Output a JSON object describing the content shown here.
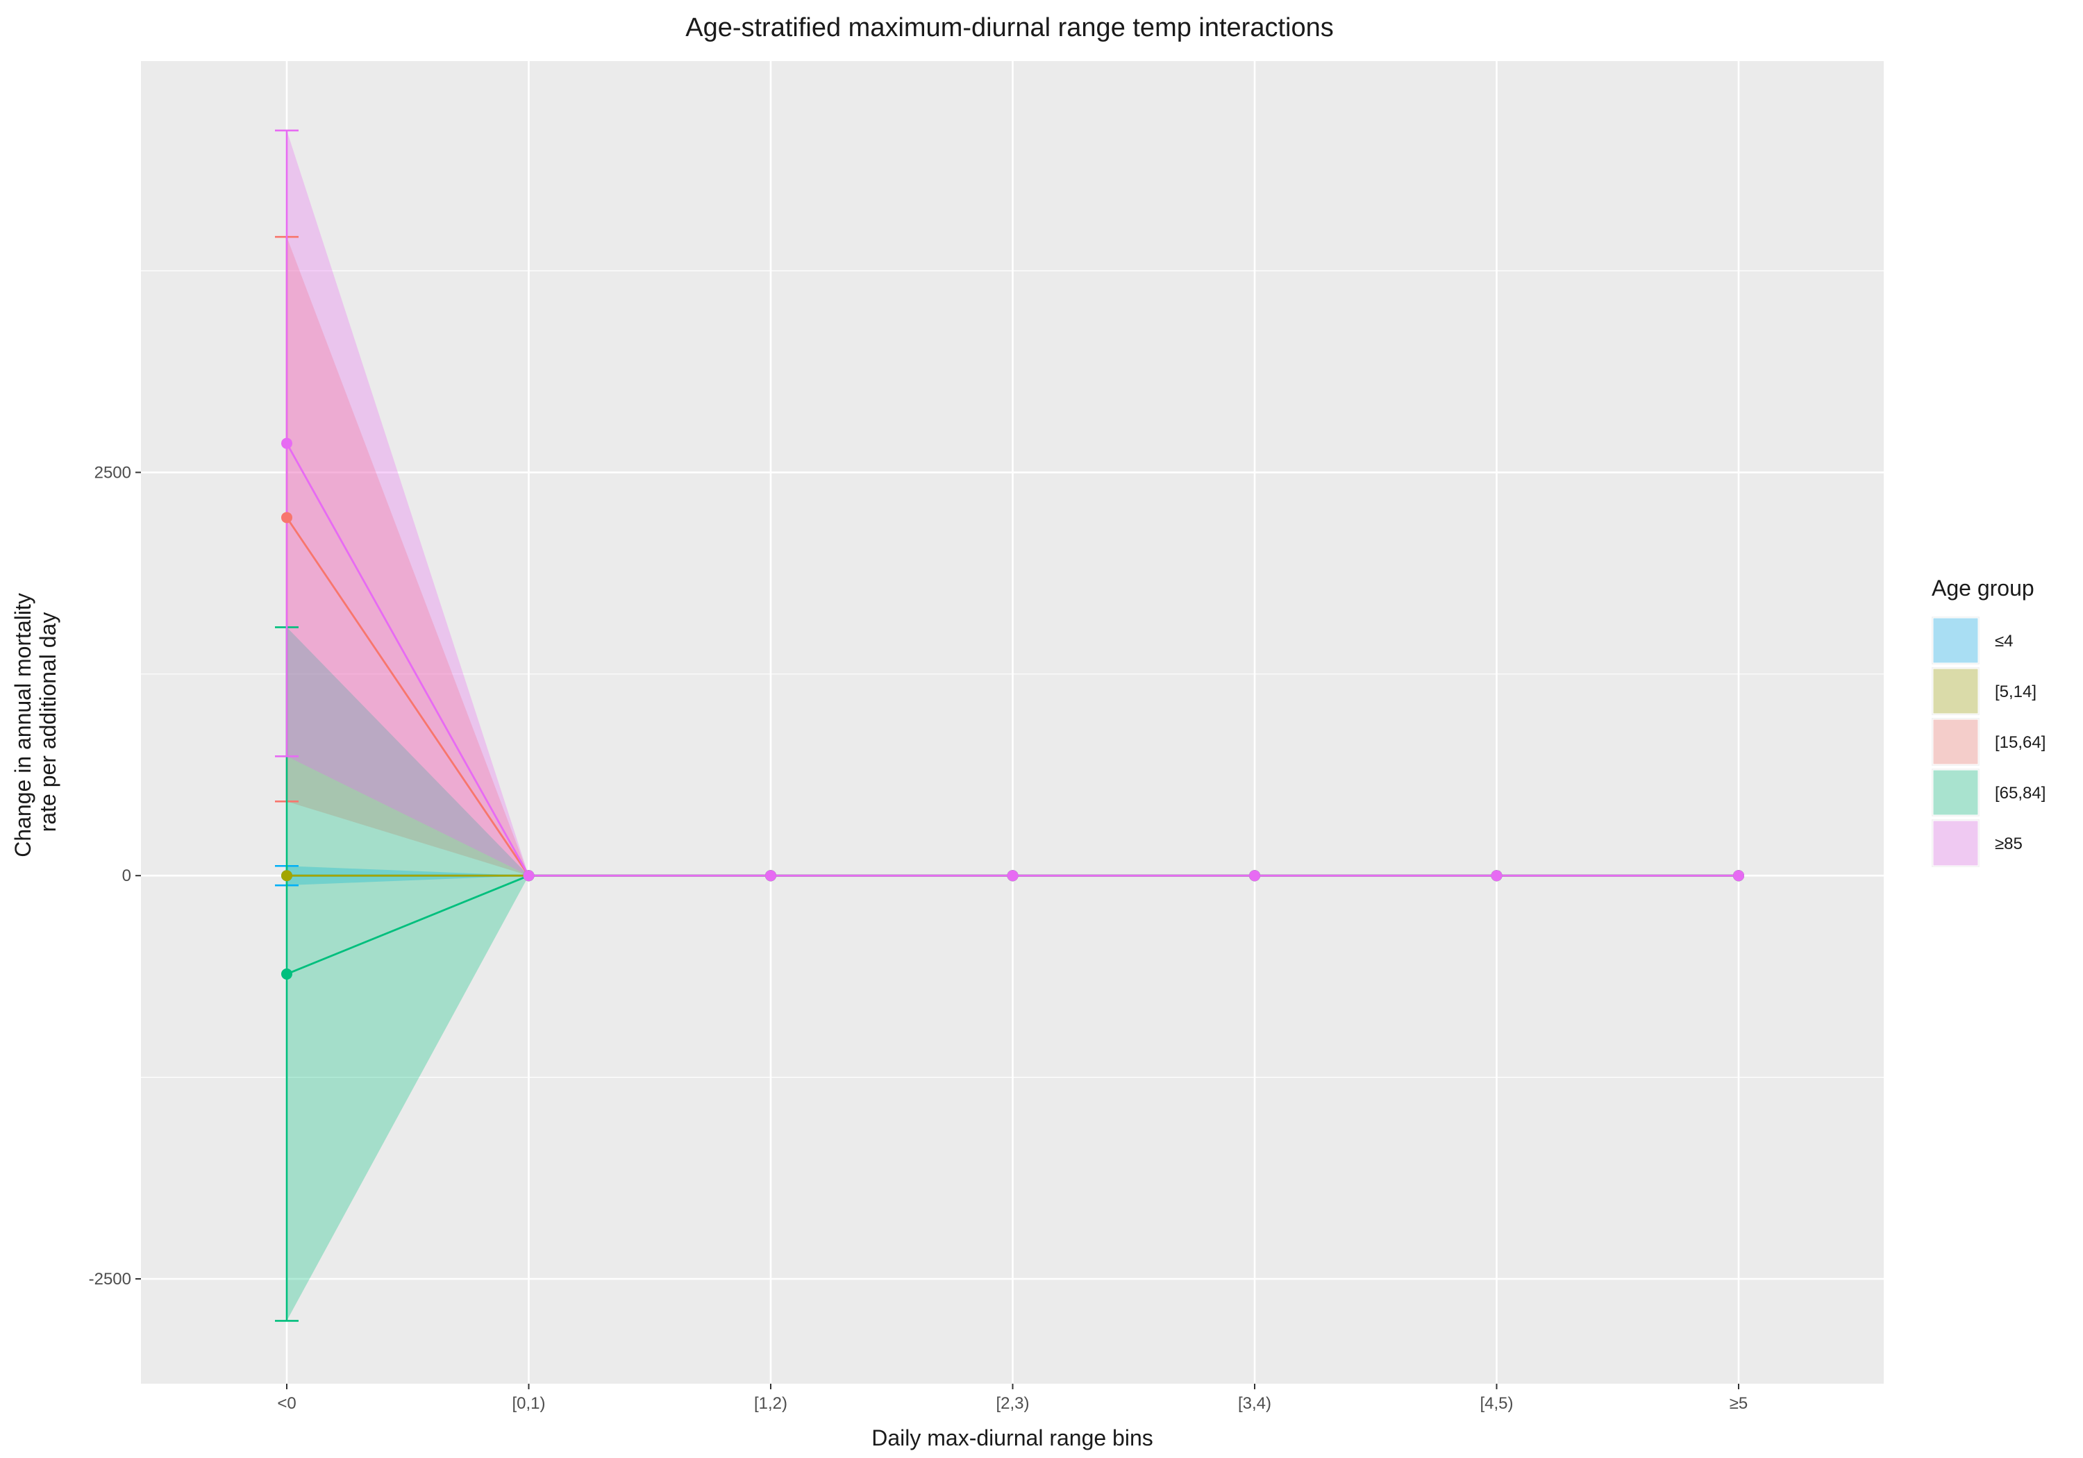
{
  "chart_data": {
    "type": "line",
    "title": "Age-stratified maximum-diurnal range temp interactions",
    "xlabel": "Daily max-diurnal range bins",
    "ylabel": [
      "Change in annual mortality",
      "rate per additional day"
    ],
    "categories": [
      "<0",
      "[0,1)",
      "[1,2)",
      "[2,3)",
      "[3,4)",
      "[4,5)",
      "≥5"
    ],
    "ylim": [
      -3150,
      5050
    ],
    "yticks": [
      -2500,
      0,
      2500
    ],
    "ytick_labels": [
      "-2500",
      "0",
      "2500"
    ],
    "grid": true,
    "legend": {
      "title": "Age group",
      "position": "right"
    },
    "series": [
      {
        "name": "≤4",
        "color": "#00B0F6",
        "values": [
          0,
          0,
          0,
          0,
          0,
          0,
          0
        ],
        "lower": [
          -60,
          0,
          0,
          0,
          0,
          0,
          0
        ],
        "upper": [
          60,
          0,
          0,
          0,
          0,
          0,
          0
        ]
      },
      {
        "name": "[5,14]",
        "color": "#A3A500",
        "values": [
          0,
          0,
          0,
          0,
          0,
          0,
          0
        ],
        "lower": [
          0,
          0,
          0,
          0,
          0,
          0,
          0
        ],
        "upper": [
          0,
          0,
          0,
          0,
          0,
          0,
          0
        ]
      },
      {
        "name": "[15,64]",
        "color": "#F8766D",
        "values": [
          2220,
          0,
          0,
          0,
          0,
          0,
          0
        ],
        "lower": [
          460,
          0,
          0,
          0,
          0,
          0,
          0
        ],
        "upper": [
          3960,
          0,
          0,
          0,
          0,
          0,
          0
        ]
      },
      {
        "name": "[65,84]",
        "color": "#00BF7D",
        "values": [
          -610,
          0,
          0,
          0,
          0,
          0,
          0
        ],
        "lower": [
          -2760,
          0,
          0,
          0,
          0,
          0,
          0
        ],
        "upper": [
          1540,
          0,
          0,
          0,
          0,
          0,
          0
        ]
      },
      {
        "name": "≥85",
        "color": "#E76BF3",
        "values": [
          2680,
          0,
          0,
          0,
          0,
          0,
          0
        ],
        "lower": [
          740,
          0,
          0,
          0,
          0,
          0,
          0
        ],
        "upper": [
          4620,
          0,
          0,
          0,
          0,
          0,
          0
        ]
      }
    ]
  }
}
